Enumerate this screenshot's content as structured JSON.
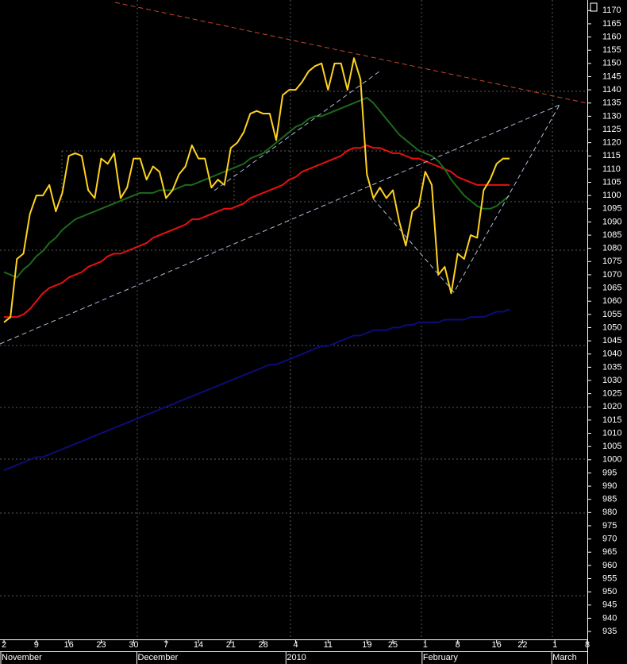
{
  "chart_data": {
    "type": "line",
    "categories": [
      "2",
      null,
      null,
      null,
      null,
      "9",
      null,
      null,
      null,
      null,
      "16",
      null,
      null,
      null,
      null,
      "23",
      null,
      null,
      null,
      null,
      "30",
      null,
      null,
      null,
      null,
      "7",
      null,
      null,
      null,
      null,
      "14",
      null,
      null,
      null,
      null,
      "21",
      null,
      null,
      null,
      null,
      "28",
      null,
      null,
      null,
      null,
      "4",
      null,
      null,
      null,
      null,
      "11",
      null,
      null,
      null,
      null,
      null,
      "19",
      null,
      null,
      null,
      "25",
      null,
      null,
      null,
      null,
      "1",
      null,
      null,
      null,
      null,
      "8",
      null,
      null,
      null,
      null,
      null,
      "16",
      null,
      null,
      null,
      "22",
      null,
      null,
      null,
      null,
      "1",
      null,
      null,
      null,
      null,
      "8"
    ],
    "month_categories": [
      "November",
      null,
      null,
      null,
      null,
      null,
      null,
      null,
      null,
      null,
      null,
      null,
      null,
      null,
      null,
      null,
      null,
      null,
      null,
      null,
      null,
      "December",
      null,
      null,
      null,
      null,
      null,
      null,
      null,
      null,
      null,
      null,
      null,
      null,
      null,
      null,
      null,
      null,
      null,
      null,
      null,
      null,
      null,
      null,
      "2010",
      null,
      null,
      null,
      null,
      null,
      null,
      null,
      null,
      null,
      null,
      null,
      null,
      null,
      null,
      null,
      null,
      null,
      null,
      null,
      null,
      "February",
      null,
      null,
      null,
      null,
      null,
      null,
      null,
      null,
      null,
      null,
      null,
      null,
      null,
      null,
      null,
      null,
      null,
      null,
      null,
      "March",
      null,
      null,
      null,
      null,
      null
    ],
    "series": [
      {
        "color": "#0c0c78",
        "values": [
          996,
          997,
          998,
          999,
          1000,
          1001,
          1001,
          1002,
          1003,
          1004,
          1005,
          1006,
          1007,
          1008,
          1009,
          1010,
          1011,
          1012,
          1013,
          1014,
          1015,
          1016,
          1017,
          1018,
          1019,
          1020,
          1021,
          1022,
          1023,
          1024,
          1025,
          1026,
          1027,
          1028,
          1029,
          1030,
          1031,
          1032,
          1033,
          1034,
          1035,
          1036,
          1036,
          1037,
          1038,
          1039,
          1040,
          1041,
          1042,
          1043,
          1043,
          1044,
          1045,
          1046,
          1047,
          1047,
          1048,
          1049,
          1049,
          1049,
          1050,
          1050,
          1051,
          1051,
          1052,
          1052,
          1052,
          1052,
          1053,
          1053,
          1053,
          1053,
          1054,
          1054,
          1054,
          1055,
          1056,
          1056,
          1057,
          null,
          null,
          null,
          null,
          null,
          null,
          null,
          null,
          null,
          null,
          null,
          null
        ]
      },
      {
        "color": "#e81010",
        "values": [
          1054,
          1054,
          1054,
          1055,
          1057,
          1060,
          1063,
          1065,
          1066,
          1067,
          1069,
          1070,
          1071,
          1073,
          1074,
          1075,
          1077,
          1078,
          1078,
          1079,
          1080,
          1081,
          1082,
          1084,
          1085,
          1086,
          1087,
          1088,
          1089,
          1091,
          1091,
          1092,
          1093,
          1094,
          1095,
          1095,
          1096,
          1097,
          1099,
          1100,
          1101,
          1102,
          1103,
          1104,
          1106,
          1107,
          1109,
          1110,
          1111,
          1112,
          1113,
          1114,
          1115,
          1117,
          1118,
          1118,
          1119,
          1118,
          1118,
          1117,
          1116,
          1116,
          1115,
          1114,
          1114,
          1113,
          1112,
          1111,
          1110,
          1109,
          1107,
          1106,
          1105,
          1104,
          1104,
          1104,
          1104,
          1104,
          1104,
          null,
          null,
          null,
          null,
          null,
          null,
          null,
          null,
          null,
          null,
          null,
          null
        ]
      },
      {
        "color": "#1c6a1c",
        "values": [
          1071,
          1070,
          1069,
          1072,
          1074,
          1077,
          1079,
          1082,
          1084,
          1087,
          1089,
          1091,
          1092,
          1093,
          1094,
          1095,
          1096,
          1097,
          1098,
          1099,
          1100,
          1101,
          1101,
          1101,
          1102,
          1102,
          1102,
          1103,
          1104,
          1104,
          1105,
          1106,
          1107,
          1108,
          1109,
          1110,
          1111,
          1112,
          1114,
          1115,
          1116,
          1118,
          1120,
          1122,
          1124,
          1126,
          1127,
          1129,
          1130,
          1130,
          1131,
          1132,
          1133,
          1134,
          1135,
          1136,
          1137,
          1135,
          1132,
          1129,
          1126,
          1123,
          1121,
          1119,
          1117,
          1116,
          1115,
          1113,
          1110,
          1106,
          1103,
          1100,
          1098,
          1096,
          1095,
          1095,
          1096,
          1098,
          1100,
          null,
          null,
          null,
          null,
          null,
          null,
          null,
          null,
          null,
          null,
          null,
          null
        ]
      },
      {
        "color": "#ffd21e",
        "values": [
          1052,
          1054,
          1076,
          1078,
          1093,
          1100,
          1100,
          1104,
          1094,
          1101,
          1115,
          1116,
          1115,
          1102,
          1099,
          1114,
          1112,
          1116,
          1099,
          1103,
          1114,
          1114,
          1106,
          1111,
          1109,
          1099,
          1102,
          1108,
          1111,
          1119,
          1114,
          1114,
          1103,
          1106,
          1104,
          1118,
          1120,
          1124,
          1131,
          1132,
          1131,
          1131,
          1121,
          1138,
          1140,
          1140,
          1143,
          1147,
          1149,
          1150,
          1140,
          1150,
          1150,
          1140,
          1152,
          1144,
          1108,
          1099,
          1103,
          1099,
          1102,
          1090,
          1081,
          1094,
          1096,
          1109,
          1104,
          1070,
          1073,
          1063,
          1078,
          1076,
          1085,
          1084,
          1102,
          1106,
          1112,
          1114,
          1114,
          null,
          null,
          null,
          null,
          null,
          null,
          null,
          null,
          null,
          null,
          null,
          null
        ]
      }
    ],
    "ylim": [
      932,
      1174
    ],
    "yticks": [
      935,
      940,
      945,
      950,
      955,
      960,
      965,
      970,
      975,
      980,
      985,
      990,
      995,
      1000,
      1005,
      1010,
      1015,
      1020,
      1025,
      1030,
      1035,
      1040,
      1045,
      1050,
      1055,
      1060,
      1065,
      1070,
      1075,
      1080,
      1085,
      1090,
      1095,
      1100,
      1105,
      1110,
      1115,
      1120,
      1125,
      1130,
      1135,
      1140,
      1145,
      1150,
      1155,
      1160,
      1165,
      1170
    ]
  }
}
